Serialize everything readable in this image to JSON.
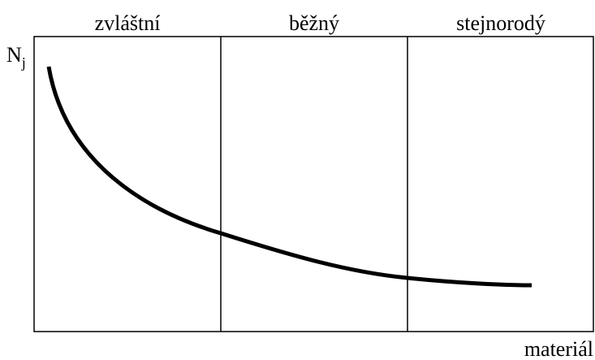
{
  "columns": [
    "zvláštní",
    "běžný",
    "stejnorodý"
  ],
  "y_label": {
    "main": "N",
    "subscript": "j"
  },
  "x_label": "materiál"
}
